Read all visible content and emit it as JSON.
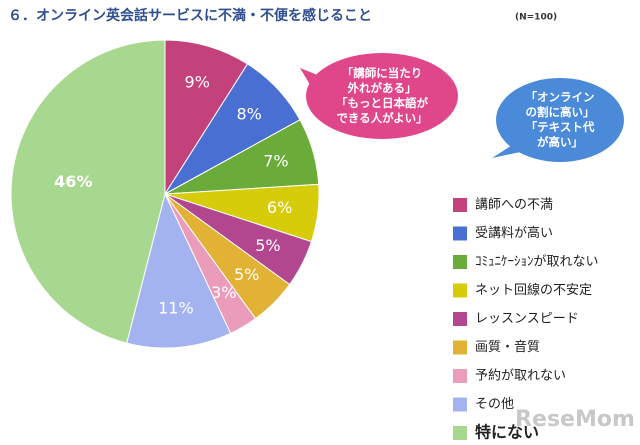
{
  "chart_data": {
    "type": "pie",
    "title": "６．オンライン英会話サービスに不満・不便を感じること",
    "subtitle": "(N=100)",
    "categories": [
      "講師への不満",
      "受講料が高い",
      "ｺﾐｭﾆｹｰｼｮﾝが取れない",
      "ネット回線の不安定",
      "レッスンスピード",
      "画質・音質",
      "予約が取れない",
      "その他",
      "特にない"
    ],
    "values": [
      9,
      8,
      7,
      6,
      5,
      5,
      3,
      11,
      46
    ],
    "value_labels": [
      "9%",
      "8%",
      "7%",
      "6%",
      "5%",
      "5%",
      "3%",
      "11%",
      "46%"
    ],
    "colors": [
      "#c3427c",
      "#4a6fd2",
      "#6aab3a",
      "#d6cc0a",
      "#b24790",
      "#e2b234",
      "#eb9cbb",
      "#a3b3f0",
      "#a8d88f"
    ],
    "legend": "right",
    "annotations": [
      {
        "lines": [
          "「講師に当たり",
          "外れがある」",
          "「もっと日本語が",
          "できる人がよい」"
        ],
        "color": "#e0468a"
      },
      {
        "lines": [
          "「オンライン",
          "の割に高い」",
          "「テキスト代",
          "が高い」"
        ],
        "color": "#4a8ad8"
      }
    ],
    "watermark": "ReseMom"
  }
}
